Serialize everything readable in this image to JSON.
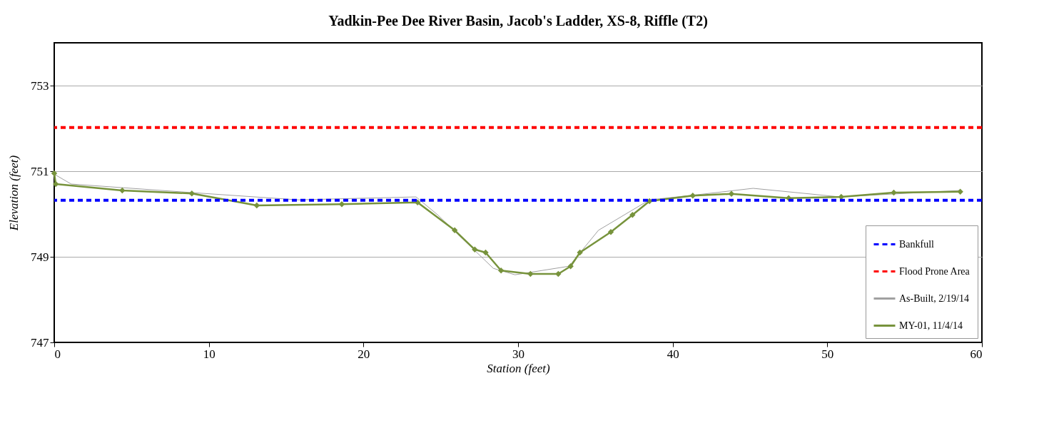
{
  "chart_data": {
    "type": "line",
    "title": "Yadkin-Pee Dee River Basin, Jacob's Ladder, XS-8, Riffle (T2)",
    "xlabel": "Station (feet)",
    "ylabel": "Elevation (feet)",
    "xlim": [
      0,
      60
    ],
    "xticks": [
      0,
      10,
      20,
      30,
      40,
      50,
      60
    ],
    "ylim": [
      747,
      754
    ],
    "yticks": [
      747,
      749,
      751,
      753
    ],
    "grid": "y",
    "legend": "bottom right",
    "ref_lines": [
      {
        "axis": "y",
        "value": 750.32,
        "label": "Bankfull",
        "color": "#0000ff",
        "line_style": "dashed"
      },
      {
        "axis": "y",
        "value": 752.02,
        "label": "Flood Prone Area",
        "color": "#ff0000",
        "line_style": "dashed"
      }
    ],
    "series": [
      {
        "name": "As-Built, 2/19/14",
        "color": "#a0a0a0",
        "marker": "none",
        "x": [
          0,
          1.1,
          8.9,
          15.8,
          23.4,
          24.8,
          28.4,
          29.8,
          33.3,
          35.2,
          38.5,
          41.6,
          45.2,
          50.8,
          58.6
        ],
        "values": [
          750.93,
          750.7,
          750.5,
          750.33,
          750.4,
          749.98,
          748.73,
          748.58,
          748.78,
          749.62,
          750.33,
          750.45,
          750.6,
          750.4,
          750.55
        ]
      },
      {
        "name": "MY-01, 11/4/14",
        "color": "#77933c",
        "marker": "diamond",
        "x": [
          0,
          0.1,
          4.4,
          8.9,
          13.1,
          18.6,
          23.5,
          25.9,
          27.2,
          27.9,
          28.9,
          30.8,
          32.6,
          33.4,
          34.0,
          36.0,
          37.4,
          38.5,
          41.3,
          43.8,
          47.5,
          50.9,
          54.3,
          58.6
        ],
        "values": [
          750.95,
          750.7,
          750.55,
          750.48,
          750.2,
          750.23,
          750.27,
          749.62,
          749.17,
          749.1,
          748.68,
          748.6,
          748.6,
          748.78,
          749.1,
          749.58,
          749.98,
          750.3,
          750.43,
          750.47,
          750.37,
          750.4,
          750.5,
          750.52
        ]
      }
    ]
  }
}
